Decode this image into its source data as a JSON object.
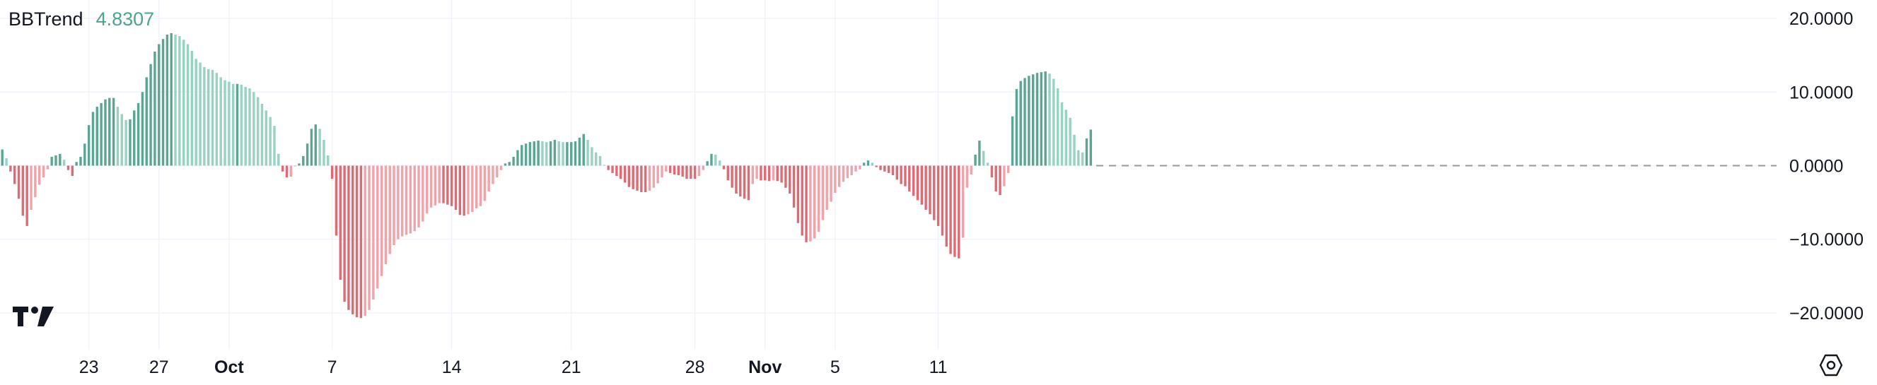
{
  "indicator": {
    "name": "BBTrend",
    "value": "4.8307",
    "value_color": "#4aa58f"
  },
  "colors": {
    "pos_strong": "#5aa593",
    "pos_weak": "#97d2c3",
    "neg_strong": "#e06a73",
    "neg_weak": "#f0a4aa",
    "grid": "#f0f3fa",
    "zero_line": "#9598a1"
  },
  "icons": {
    "logo": "tradingview-logo",
    "settings": "settings-hexagon-icon"
  },
  "chart_data": {
    "type": "bar",
    "title": "",
    "series_name": "BBTrend",
    "ylim": [
      -25,
      22.5
    ],
    "yticks": [
      {
        "value": 20,
        "label": "20.0000"
      },
      {
        "value": 10,
        "label": "10.0000"
      },
      {
        "value": 0,
        "label": "0.0000"
      },
      {
        "value": -10,
        "label": "−10.0000"
      },
      {
        "value": -20,
        "label": "−20.0000"
      }
    ],
    "xticks": [
      {
        "index": 21,
        "label": "23",
        "bold": false
      },
      {
        "index": 38,
        "label": "27",
        "bold": false
      },
      {
        "index": 55,
        "label": "Oct",
        "bold": true
      },
      {
        "index": 80,
        "label": "7",
        "bold": false
      },
      {
        "index": 109,
        "label": "14",
        "bold": false
      },
      {
        "index": 138,
        "label": "21",
        "bold": false
      },
      {
        "index": 168,
        "label": "28",
        "bold": false
      },
      {
        "index": 185,
        "label": "Nov",
        "bold": true
      },
      {
        "index": 202,
        "label": "5",
        "bold": false
      },
      {
        "index": 227,
        "label": "11",
        "bold": false
      }
    ],
    "grid": true,
    "dashed_zero_line_after_last_bar": true,
    "values": [
      2.2,
      1.0,
      -0.8,
      -2.5,
      -4.5,
      -6.8,
      -8.2,
      -6.0,
      -4.3,
      -2.6,
      -1.6,
      -0.5,
      1.2,
      1.4,
      1.6,
      0.8,
      -0.6,
      -1.4,
      0.5,
      1.2,
      3.0,
      5.5,
      7.3,
      8.0,
      8.5,
      9.0,
      9.2,
      9.2,
      8.0,
      7.0,
      6.2,
      6.3,
      7.5,
      8.5,
      10.0,
      12.0,
      13.8,
      15.5,
      16.5,
      17.2,
      17.8,
      18.0,
      17.8,
      17.6,
      17.1,
      16.5,
      15.6,
      14.5,
      14.0,
      13.4,
      13.1,
      13.0,
      12.6,
      12.0,
      11.6,
      11.4,
      11.1,
      11.1,
      11.0,
      10.7,
      10.5,
      10.0,
      9.3,
      8.4,
      7.5,
      6.6,
      5.4,
      1.6,
      -0.8,
      -1.6,
      -1.5,
      -0.1,
      0.3,
      1.3,
      3.0,
      5.0,
      5.6,
      5.0,
      3.5,
      1.4,
      -1.8,
      -9.5,
      -15.5,
      -18.5,
      -19.6,
      -20.2,
      -20.6,
      -20.7,
      -20.4,
      -19.6,
      -18.2,
      -16.7,
      -15.0,
      -13.4,
      -12.0,
      -10.8,
      -10.0,
      -9.6,
      -9.4,
      -9.2,
      -8.9,
      -8.4,
      -7.6,
      -6.5,
      -5.7,
      -5.4,
      -5.1,
      -5.1,
      -5.3,
      -5.5,
      -6.0,
      -6.7,
      -6.8,
      -6.6,
      -6.3,
      -5.8,
      -5.5,
      -4.8,
      -3.5,
      -2.5,
      -1.6,
      -0.6,
      0.3,
      0.5,
      1.2,
      2.1,
      2.8,
      3.0,
      3.2,
      3.3,
      3.4,
      3.3,
      3.2,
      3.3,
      3.5,
      3.3,
      3.2,
      3.2,
      3.2,
      3.3,
      3.8,
      4.3,
      3.5,
      2.5,
      1.8,
      1.3,
      0.1,
      -0.6,
      -1.0,
      -1.4,
      -1.8,
      -2.3,
      -2.9,
      -3.2,
      -3.4,
      -3.6,
      -3.6,
      -3.4,
      -3.0,
      -2.4,
      -1.6,
      -0.8,
      -1.0,
      -1.2,
      -1.3,
      -1.5,
      -1.8,
      -1.8,
      -1.8,
      -1.4,
      -0.6,
      0.6,
      1.6,
      1.5,
      0.7,
      -0.5,
      -2.0,
      -3.0,
      -3.8,
      -4.2,
      -4.5,
      -4.7,
      -2.5,
      -1.8,
      -2.0,
      -2.0,
      -2.1,
      -2.0,
      -2.1,
      -2.3,
      -3.0,
      -3.8,
      -5.7,
      -7.8,
      -9.5,
      -10.4,
      -10.3,
      -9.9,
      -9.0,
      -7.4,
      -6.0,
      -4.9,
      -3.7,
      -2.9,
      -2.2,
      -1.7,
      -1.3,
      -0.8,
      -0.5,
      0.4,
      0.7,
      0.4,
      -0.2,
      -0.6,
      -0.8,
      -1.0,
      -1.3,
      -1.9,
      -2.5,
      -2.8,
      -3.5,
      -4.1,
      -4.7,
      -5.3,
      -6.0,
      -6.6,
      -7.4,
      -8.2,
      -9.5,
      -11.0,
      -12.0,
      -12.4,
      -12.6,
      -9.8,
      -3.0,
      -1.2,
      1.5,
      3.4,
      2.0,
      0.4,
      -1.6,
      -3.5,
      -4.0,
      -2.8,
      -1.0,
      6.7,
      10.4,
      11.5,
      11.9,
      12.2,
      12.4,
      12.6,
      12.7,
      12.8,
      12.5,
      11.8,
      10.5,
      8.6,
      7.6,
      6.5,
      4.2,
      2.1,
      1.8,
      3.7,
      4.9
    ]
  }
}
